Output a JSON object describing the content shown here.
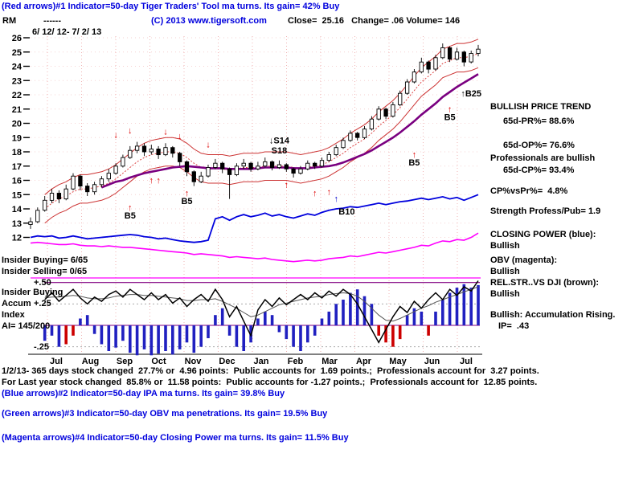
{
  "header": {
    "line1": "(Red arrows)#1 Indicator=50-day Tiger Traders' Tool ma turns. Its gain= 42% Buy",
    "symbol": "RM",
    "dashes": "------",
    "copyright": "(C) 2013 www.tigersoft.com",
    "quote": "Close=  25.16   Change= .06 Volume= 146",
    "date_range": "6/ 12/ 12- 7/ 2/ 13"
  },
  "right_panel": {
    "trend_title": "BULLISH PRICE TREND",
    "pr": "65d-PR%= 88.6%",
    "op": "65d-OP%= 76.6%",
    "prof": "Professionals are bullish",
    "cp": "65d-CP%= 93.4%",
    "cpvspr": "CP%vsPr%=  4.8%",
    "strength": "Strength Profess/Pub= 1.9",
    "closing_power_label": "CLOSING POWER (blue):",
    "closing_power_value": "Bullish",
    "obv_label": "OBV (magenta):",
    "obv_value": "Bullish",
    "relstr_label": "REL.STR..VS DJI (brown):",
    "relstr_value": "Bullish",
    "accum_line1": "Bullish: Accumulation Rising.",
    "accum_line2": "IP=  .43"
  },
  "left_panel": {
    "insider_buying": "Insider Buying= 6/65",
    "insider_selling": "Insider Selling= 0/65",
    "plus50": "+.50",
    "insider_label": "Insider Buying",
    "accum": "Accum",
    "plus25": "+.25",
    "index": "Index",
    "ai": "AI= 145/200",
    "minus25": "-.25"
  },
  "footer": {
    "line1": "1/2/13- 365 days stock changed  27.7% or  4.96 points:  Public accounts for  1.69 points.;  Professionals account for  3.27 points.",
    "line2": "For Last year stock changed  85.8% or  11.58 points:  Public accounts for -1.27 points.;  Professionals account for  12.85 points.",
    "line3": "(Blue arrows)#2 Indicator=50-day IPA ma turns. Its gain= 39.8% Buy",
    "line4": "(Green arrows)#3 Indicator=50-day OBV ma penetrations. Its gain= 19.5% Buy",
    "line5": "(Magenta arrows)#4 Indicator=50-day Closing Power ma turns. Its gain= 11.5% Buy"
  },
  "chart_data": {
    "type": "candlestick+indicators",
    "title": "RM daily chart 6/12/12 - 7/2/13 with Tiger Traders' Tool signals",
    "months": [
      "Jul",
      "Aug",
      "Sep",
      "Oct",
      "Nov",
      "Dec",
      "Jan",
      "Feb",
      "Mar",
      "Apr",
      "May",
      "Jun",
      "Jul"
    ],
    "price_axis": {
      "min": 12,
      "max": 26,
      "ticks": [
        26,
        25,
        24,
        23,
        22,
        21,
        20,
        19,
        18,
        17,
        16,
        15,
        14,
        13,
        12
      ]
    },
    "candles": [
      [
        12.9,
        13.4,
        12.6,
        13.1
      ],
      [
        13.1,
        14.1,
        13.0,
        13.9
      ],
      [
        13.9,
        14.9,
        13.8,
        14.6
      ],
      [
        14.6,
        15.4,
        14.4,
        15.1
      ],
      [
        15.1,
        15.3,
        14.4,
        14.7
      ],
      [
        14.7,
        15.7,
        14.6,
        15.4
      ],
      [
        15.4,
        16.5,
        15.3,
        16.3
      ],
      [
        16.3,
        16.4,
        15.3,
        15.6
      ],
      [
        15.6,
        15.8,
        14.9,
        15.2
      ],
      [
        15.2,
        15.9,
        15.0,
        15.7
      ],
      [
        15.7,
        16.3,
        15.5,
        16.1
      ],
      [
        16.1,
        16.8,
        15.9,
        16.5
      ],
      [
        16.5,
        17.2,
        16.4,
        17.0
      ],
      [
        17.0,
        17.8,
        16.9,
        17.6
      ],
      [
        17.6,
        18.4,
        17.5,
        18.1
      ],
      [
        18.1,
        18.7,
        17.9,
        18.4
      ],
      [
        18.4,
        18.6,
        17.7,
        18.0
      ],
      [
        18.0,
        18.5,
        17.8,
        18.2
      ],
      [
        18.2,
        18.4,
        17.5,
        17.8
      ],
      [
        17.8,
        18.6,
        17.7,
        18.3
      ],
      [
        18.3,
        18.4,
        17.6,
        17.9
      ],
      [
        17.9,
        18.0,
        17.0,
        17.3
      ],
      [
        17.3,
        17.4,
        16.3,
        16.6
      ],
      [
        16.6,
        16.7,
        15.6,
        15.9
      ],
      [
        15.9,
        16.6,
        15.8,
        16.3
      ],
      [
        16.3,
        17.1,
        16.2,
        16.9
      ],
      [
        16.9,
        17.5,
        16.8,
        17.2
      ],
      [
        17.2,
        17.3,
        16.5,
        16.8
      ],
      [
        16.8,
        16.9,
        14.7,
        16.4
      ],
      [
        16.4,
        17.2,
        16.3,
        17.0
      ],
      [
        17.0,
        17.5,
        16.8,
        17.2
      ],
      [
        17.2,
        17.3,
        16.6,
        16.8
      ],
      [
        16.8,
        17.3,
        16.7,
        17.0
      ],
      [
        17.0,
        17.6,
        16.9,
        17.3
      ],
      [
        17.3,
        17.4,
        16.7,
        16.9
      ],
      [
        16.9,
        17.4,
        16.8,
        17.1
      ],
      [
        17.1,
        17.2,
        16.6,
        16.8
      ],
      [
        16.8,
        16.9,
        16.2,
        16.5
      ],
      [
        16.5,
        17.0,
        16.4,
        16.8
      ],
      [
        16.8,
        17.4,
        16.7,
        17.2
      ],
      [
        17.2,
        17.3,
        16.8,
        17.0
      ],
      [
        17.0,
        17.6,
        16.9,
        17.4
      ],
      [
        17.4,
        18.0,
        17.3,
        17.8
      ],
      [
        17.8,
        18.5,
        17.7,
        18.3
      ],
      [
        18.3,
        19.0,
        18.2,
        18.8
      ],
      [
        18.8,
        19.5,
        18.7,
        19.3
      ],
      [
        19.3,
        19.4,
        18.8,
        19.0
      ],
      [
        19.0,
        19.8,
        18.9,
        19.6
      ],
      [
        19.6,
        20.5,
        19.5,
        20.3
      ],
      [
        20.3,
        21.2,
        20.2,
        21.0
      ],
      [
        21.0,
        21.1,
        20.3,
        20.5
      ],
      [
        20.5,
        21.5,
        20.4,
        21.3
      ],
      [
        21.3,
        22.3,
        21.2,
        22.1
      ],
      [
        22.1,
        23.1,
        22.0,
        22.9
      ],
      [
        22.9,
        23.8,
        22.8,
        23.6
      ],
      [
        23.6,
        24.6,
        23.5,
        24.3
      ],
      [
        24.3,
        24.4,
        23.5,
        23.8
      ],
      [
        23.8,
        24.8,
        23.7,
        24.6
      ],
      [
        24.6,
        25.6,
        24.5,
        25.3
      ],
      [
        25.3,
        25.4,
        24.3,
        24.5
      ],
      [
        24.5,
        25.3,
        24.4,
        25.0
      ],
      [
        25.0,
        25.1,
        24.0,
        24.3
      ],
      [
        24.3,
        25.1,
        24.2,
        24.9
      ],
      [
        24.9,
        25.5,
        24.7,
        25.2
      ]
    ],
    "ma_purple": {
      "start": 10,
      "values": [
        15.5,
        15.7,
        15.9,
        16.0,
        16.2,
        16.35,
        16.5,
        16.6,
        16.7,
        16.8,
        16.9,
        16.95,
        17.0,
        16.95,
        16.9,
        16.85,
        16.85,
        16.85,
        16.8,
        16.8,
        16.8,
        16.8,
        16.85,
        16.9,
        16.9,
        16.9,
        16.9,
        16.85,
        16.85,
        16.85,
        16.9,
        16.95,
        17.0,
        17.1,
        17.25,
        17.45,
        17.65,
        17.85,
        18.1,
        18.4,
        18.7,
        19.0,
        19.35,
        19.75,
        20.15,
        20.6,
        21.0,
        21.4,
        21.85,
        22.2,
        22.55,
        22.85,
        23.15,
        23.45
      ]
    },
    "band_center": {
      "start": 2,
      "offset": 1.0,
      "values": [
        14.0,
        14.4,
        14.7,
        14.9,
        15.2,
        15.4,
        15.4,
        15.5,
        15.6,
        15.8,
        16.1,
        16.5,
        16.9,
        17.3,
        17.6,
        17.8,
        17.9,
        18.0,
        18.0,
        17.9,
        17.6,
        17.2,
        16.9,
        16.8,
        16.8,
        16.8,
        16.7,
        16.8,
        16.9,
        16.9,
        16.9,
        17.0,
        17.0,
        17.0,
        17.0,
        16.9,
        16.8,
        16.9,
        17.0,
        17.1,
        17.3,
        17.6,
        17.9,
        18.3,
        18.6,
        18.9,
        19.3,
        19.8,
        20.2,
        20.6,
        21.1,
        21.7,
        22.3,
        22.9,
        23.3,
        23.7,
        24.2,
        24.4,
        24.6,
        24.6,
        24.7,
        24.9
      ]
    },
    "closing_power": [
      12.0,
      12.1,
      12.05,
      12.1,
      11.95,
      12.0,
      12.1,
      12.0,
      11.9,
      11.95,
      12.0,
      12.05,
      12.1,
      12.15,
      12.2,
      12.15,
      12.05,
      12.0,
      11.9,
      11.95,
      11.85,
      11.75,
      11.7,
      11.65,
      11.7,
      11.8,
      13.3,
      13.45,
      13.2,
      13.45,
      13.6,
      13.45,
      13.55,
      13.7,
      13.5,
      13.6,
      13.45,
      13.35,
      13.5,
      13.65,
      13.55,
      13.75,
      13.9,
      14.0,
      14.05,
      14.15,
      14.1,
      14.2,
      14.3,
      14.4,
      14.3,
      14.4,
      14.5,
      14.55,
      14.65,
      14.75,
      14.65,
      14.75,
      14.85,
      14.7,
      14.8,
      14.6,
      14.8,
      15.0
    ],
    "obv": [
      11.6,
      11.65,
      11.6,
      11.55,
      11.5,
      11.5,
      11.55,
      11.45,
      11.4,
      11.4,
      11.35,
      11.4,
      11.35,
      11.3,
      11.3,
      11.25,
      11.2,
      11.15,
      11.1,
      11.05,
      11.0,
      10.95,
      10.9,
      10.8,
      10.85,
      10.8,
      10.75,
      10.7,
      10.6,
      10.65,
      10.6,
      10.55,
      10.5,
      10.55,
      10.45,
      10.4,
      10.35,
      10.3,
      10.35,
      10.4,
      10.35,
      10.4,
      10.5,
      10.55,
      10.6,
      10.7,
      10.65,
      10.75,
      10.85,
      10.95,
      10.9,
      11.0,
      11.1,
      11.2,
      11.3,
      11.45,
      11.4,
      11.6,
      11.75,
      11.7,
      11.85,
      11.8,
      12.0,
      12.3
    ],
    "rel_str": [
      0.3,
      0.34,
      0.3,
      0.38,
      0.28,
      0.35,
      0.42,
      0.32,
      0.25,
      0.33,
      0.28,
      0.36,
      0.4,
      0.33,
      0.42,
      0.36,
      0.3,
      0.38,
      0.3,
      0.36,
      0.26,
      0.32,
      0.22,
      0.3,
      0.36,
      0.28,
      0.42,
      0.3,
      0.1,
      0.22,
      0.05,
      -0.12,
      0.18,
      0.3,
      0.22,
      0.32,
      0.24,
      0.3,
      0.36,
      0.3,
      0.38,
      0.32,
      0.4,
      0.34,
      0.42,
      0.36,
      0.25,
      0.1,
      -0.05,
      -0.2,
      -0.05,
      0.1,
      0.22,
      0.15,
      0.28,
      0.2,
      0.3,
      0.38,
      0.3,
      0.42,
      0.35,
      0.45,
      0.4,
      0.52
    ],
    "rel_str_ma": [
      0.31,
      0.32,
      0.32,
      0.33,
      0.33,
      0.34,
      0.35,
      0.34,
      0.32,
      0.31,
      0.31,
      0.32,
      0.34,
      0.35,
      0.36,
      0.36,
      0.35,
      0.35,
      0.34,
      0.33,
      0.32,
      0.31,
      0.29,
      0.29,
      0.3,
      0.3,
      0.31,
      0.28,
      0.24,
      0.2,
      0.15,
      0.1,
      0.12,
      0.16,
      0.2,
      0.24,
      0.26,
      0.28,
      0.3,
      0.32,
      0.33,
      0.34,
      0.36,
      0.37,
      0.38,
      0.37,
      0.34,
      0.28,
      0.2,
      0.12,
      0.06,
      0.05,
      0.08,
      0.12,
      0.16,
      0.2,
      0.23,
      0.27,
      0.3,
      0.33,
      0.36,
      0.39,
      0.42,
      0.45
    ],
    "accum_index": [
      0.05,
      -0.1,
      -0.18,
      -0.12,
      -0.25,
      -0.22,
      -0.12,
      0.08,
      0.12,
      -0.1,
      -0.22,
      -0.3,
      -0.26,
      -0.18,
      -0.32,
      -0.35,
      -0.28,
      -0.35,
      -0.33,
      -0.3,
      -0.34,
      -0.28,
      -0.2,
      -0.32,
      -0.25,
      -0.15,
      0.12,
      0.2,
      -0.12,
      -0.25,
      -0.3,
      -0.2,
      0.08,
      0.16,
      0.12,
      -0.08,
      -0.16,
      -0.25,
      -0.3,
      -0.2,
      -0.12,
      0.08,
      0.16,
      0.25,
      0.3,
      0.38,
      0.42,
      0.34,
      0.25,
      -0.12,
      -0.2,
      -0.25,
      -0.16,
      0.12,
      0.2,
      0.16,
      -0.12,
      0.16,
      0.3,
      0.38,
      0.44,
      0.48,
      0.44,
      0.47
    ],
    "accum_red": [
      5,
      6,
      49,
      50,
      51,
      52,
      56
    ],
    "lower_axis": {
      "labels": [
        "+.50",
        "+.25",
        "-.25"
      ],
      "gridlines_solid": [
        0.5,
        0
      ],
      "gridlines_dashed": [
        0.25,
        -0.25
      ]
    },
    "signals": [
      {
        "i": 12,
        "price": 19.0,
        "arrow": "down",
        "color": "red"
      },
      {
        "i": 14,
        "price": 19.3,
        "arrow": "down",
        "color": "red"
      },
      {
        "i": 19,
        "price": 19.2,
        "arrow": "down",
        "color": "red"
      },
      {
        "i": 21,
        "price": 18.9,
        "arrow": "down",
        "color": "red"
      },
      {
        "i": 25,
        "price": 18.3,
        "arrow": "down",
        "color": "red"
      },
      {
        "i": 14,
        "price": 13.9,
        "arrow": "up",
        "color": "red",
        "text": "B5"
      },
      {
        "i": 22,
        "price": 14.9,
        "arrow": "up",
        "color": "red",
        "text": "B5"
      },
      {
        "i": 54,
        "price": 17.6,
        "arrow": "up",
        "color": "red",
        "text": "B5"
      },
      {
        "i": 59,
        "price": 20.8,
        "arrow": "up",
        "color": "red",
        "text": "B5"
      },
      {
        "i": 17,
        "price": 15.8,
        "arrow": "up",
        "color": "red",
        "bold": true
      },
      {
        "i": 18,
        "price": 15.8,
        "arrow": "up",
        "color": "red",
        "bold": true
      },
      {
        "i": 36,
        "price": 15.5,
        "arrow": "up",
        "color": "red"
      },
      {
        "i": 40,
        "price": 14.9,
        "arrow": "up",
        "color": "red"
      },
      {
        "i": 42,
        "price": 15.0,
        "arrow": "up",
        "color": "red",
        "bold": true
      },
      {
        "i": 43,
        "price": 14.5,
        "arrow": "up",
        "color": "blue"
      },
      {
        "i": 44.5,
        "price": 13.6,
        "text": "B10",
        "color": "black",
        "size": 14
      },
      {
        "i": 62,
        "price": 21.9,
        "text": "↑B25",
        "color": "black"
      },
      {
        "i": 35,
        "price": 18.6,
        "text": "↓S14",
        "color": "black"
      },
      {
        "i": 35,
        "price": 17.9,
        "text": "S18",
        "color": "black"
      }
    ]
  }
}
